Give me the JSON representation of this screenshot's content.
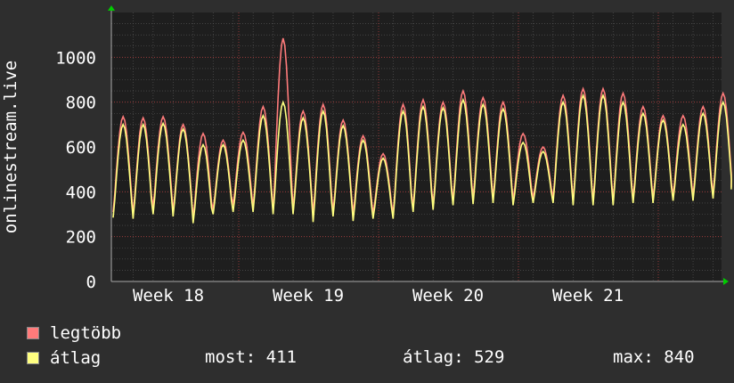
{
  "chart_data": {
    "type": "line",
    "ylabel": "onlinestream.live",
    "y_ticks": [
      0,
      200,
      400,
      600,
      800,
      1000
    ],
    "ylim": [
      0,
      1200
    ],
    "x_tick_labels": [
      "Week 18",
      "Week 19",
      "Week 20",
      "Week 21"
    ],
    "grid": true,
    "series": [
      {
        "name": "legtöbb",
        "color": "#ff7b7b",
        "daily_peaks": [
          735,
          730,
          735,
          700,
          660,
          630,
          665,
          780,
          1085,
          760,
          790,
          720,
          650,
          570,
          790,
          810,
          800,
          850,
          820,
          800,
          660,
          600,
          830,
          860,
          860,
          840,
          780,
          740,
          740,
          780,
          840
        ],
        "daily_troughs": [
          310,
          300,
          330,
          310,
          280,
          320,
          340,
          330,
          310,
          320,
          300,
          310,
          300,
          300,
          300,
          330,
          340,
          360,
          370,
          370,
          360,
          370,
          370,
          360,
          360,
          360,
          370,
          370,
          380,
          380,
          390
        ]
      },
      {
        "name": "átlag",
        "color": "#ffff80",
        "daily_peaks": [
          700,
          700,
          705,
          680,
          610,
          610,
          630,
          740,
          800,
          730,
          760,
          695,
          630,
          550,
          760,
          780,
          775,
          810,
          790,
          770,
          620,
          580,
          800,
          830,
          830,
          800,
          750,
          720,
          700,
          750,
          800
        ],
        "daily_troughs": [
          285,
          280,
          300,
          290,
          260,
          300,
          310,
          310,
          300,
          300,
          265,
          290,
          270,
          280,
          280,
          310,
          320,
          340,
          345,
          350,
          340,
          350,
          350,
          340,
          340,
          340,
          350,
          350,
          360,
          360,
          370
        ]
      }
    ]
  },
  "legend": {
    "items": [
      {
        "label": "legtöbb",
        "color": "#ff7b7b"
      },
      {
        "label": "átlag",
        "color": "#ffff80"
      }
    ],
    "stats": {
      "current": "most: 411",
      "average": "átlag: 529",
      "max": "max: 840"
    }
  }
}
